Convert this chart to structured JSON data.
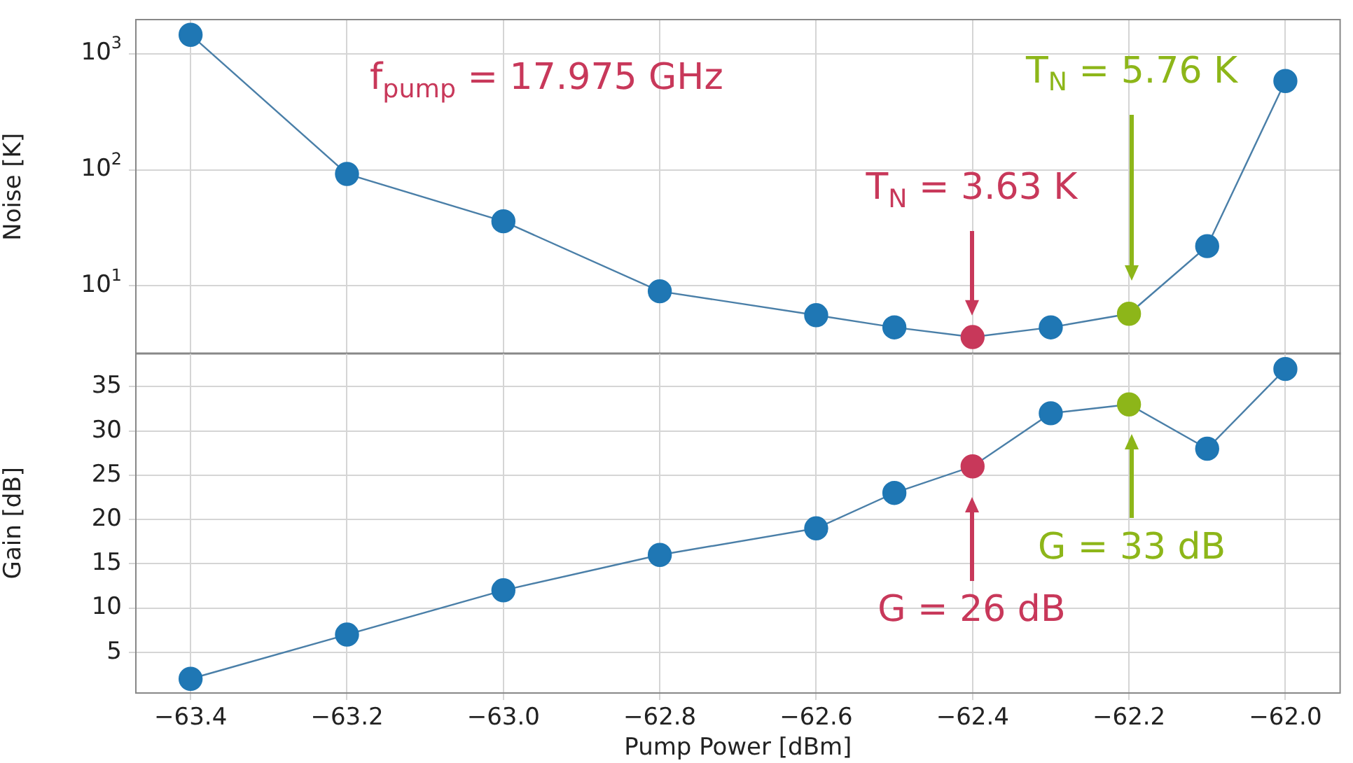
{
  "chart_data": [
    {
      "type": "line",
      "ylabel": "Noise [K]",
      "log": "y",
      "grid": true,
      "marker": "circle",
      "tick_labels": "y",
      "x": [
        -63.4,
        -63.2,
        -63.0,
        -62.8,
        -62.6,
        -62.5,
        -62.4,
        -62.3,
        -62.2,
        -62.1,
        -62.0
      ],
      "xlim": [
        -63.47,
        -61.93
      ],
      "xticks": [
        -63.4,
        -63.2,
        -63.0,
        -62.8,
        -62.6,
        -62.4,
        -62.2,
        -62.0
      ],
      "ylim": [
        2.6,
        1960
      ],
      "yticks": [
        {
          "value": 10,
          "label": "10$^{1}$"
        },
        {
          "value": 100,
          "label": "10$^{2}$"
        },
        {
          "value": 1000,
          "label": "10$^{3}$"
        }
      ],
      "series": [
        {
          "color": "#4a7fa8",
          "colors": [
            "#1f77b4",
            "#1f77b4",
            "#1f77b4",
            "#1f77b4",
            "#1f77b4",
            "#1f77b4",
            "#c8385a",
            "#1f77b4",
            "#8db619",
            "#1f77b4",
            "#1f77b4"
          ],
          "values": [
            1450,
            92,
            36,
            9,
            5.6,
            4.4,
            3.63,
            4.4,
            5.76,
            22,
            580
          ]
        }
      ],
      "annotations": [
        "f$_{pump}$ = 17.975 GHz",
        "T$_{N}$ = 3.63 K",
        "T$_{N}$ = 5.76 K"
      ]
    },
    {
      "type": "line",
      "ylabel": "Gain [dB]",
      "xlabel": "Pump Power [dBm]",
      "grid": true,
      "marker": "circle",
      "x": [
        -63.4,
        -63.2,
        -63.0,
        -62.8,
        -62.6,
        -62.5,
        -62.4,
        -62.3,
        -62.2,
        -62.1,
        -62.0
      ],
      "xlim": [
        -63.47,
        -61.93
      ],
      "xticks": [
        {
          "value": -63.4,
          "label": "−63.4"
        },
        {
          "value": -63.2,
          "label": "−63.2"
        },
        {
          "value": -63.0,
          "label": "−63.0"
        },
        {
          "value": -62.8,
          "label": "−62.8"
        },
        {
          "value": -62.6,
          "label": "−62.6"
        },
        {
          "value": -62.4,
          "label": "−62.4"
        },
        {
          "value": -62.2,
          "label": "−62.2"
        },
        {
          "value": -62.0,
          "label": "−62.0"
        }
      ],
      "ylim": [
        0.4,
        38.8
      ],
      "yticks": [
        5,
        10,
        15,
        20,
        25,
        30,
        35
      ],
      "series": [
        {
          "color": "#4a7fa8",
          "colors": [
            "#1f77b4",
            "#1f77b4",
            "#1f77b4",
            "#1f77b4",
            "#1f77b4",
            "#1f77b4",
            "#c8385a",
            "#1f77b4",
            "#8db619",
            "#1f77b4",
            "#1f77b4"
          ],
          "values": [
            2,
            7,
            12,
            16,
            19,
            23,
            26,
            32,
            33,
            28,
            37
          ]
        }
      ],
      "annotations": [
        "G = 26 dB",
        "G = 33 dB"
      ]
    }
  ]
}
